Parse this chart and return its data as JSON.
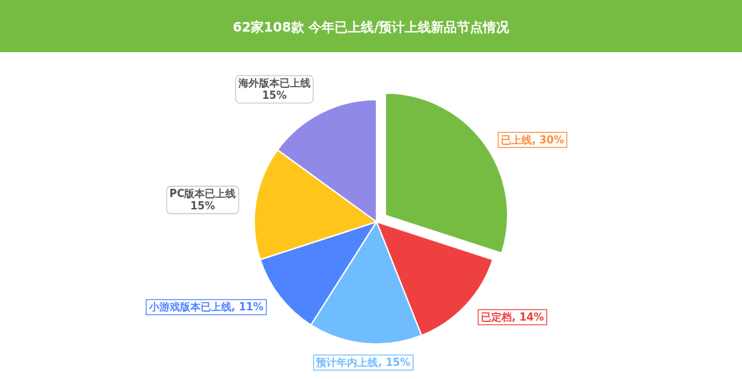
{
  "chart_data": {
    "type": "pie",
    "title": "62家108款 今年已上线/预计上线新品节点情况",
    "categories": [
      "已上线",
      "已定档",
      "预计年内上线",
      "小游戏版本已上线",
      "PC版本已上线",
      "海外版本已上线"
    ],
    "values": [
      30,
      14,
      15,
      11,
      15,
      15
    ],
    "colors": [
      "#76bc42",
      "#ef4040",
      "#6fbcff",
      "#4f84ff",
      "#ffc51a",
      "#9089e8"
    ],
    "value_labels": [
      ", 30%",
      ", 14%",
      ", 15%",
      ", 11%",
      "15%",
      "15%"
    ]
  }
}
